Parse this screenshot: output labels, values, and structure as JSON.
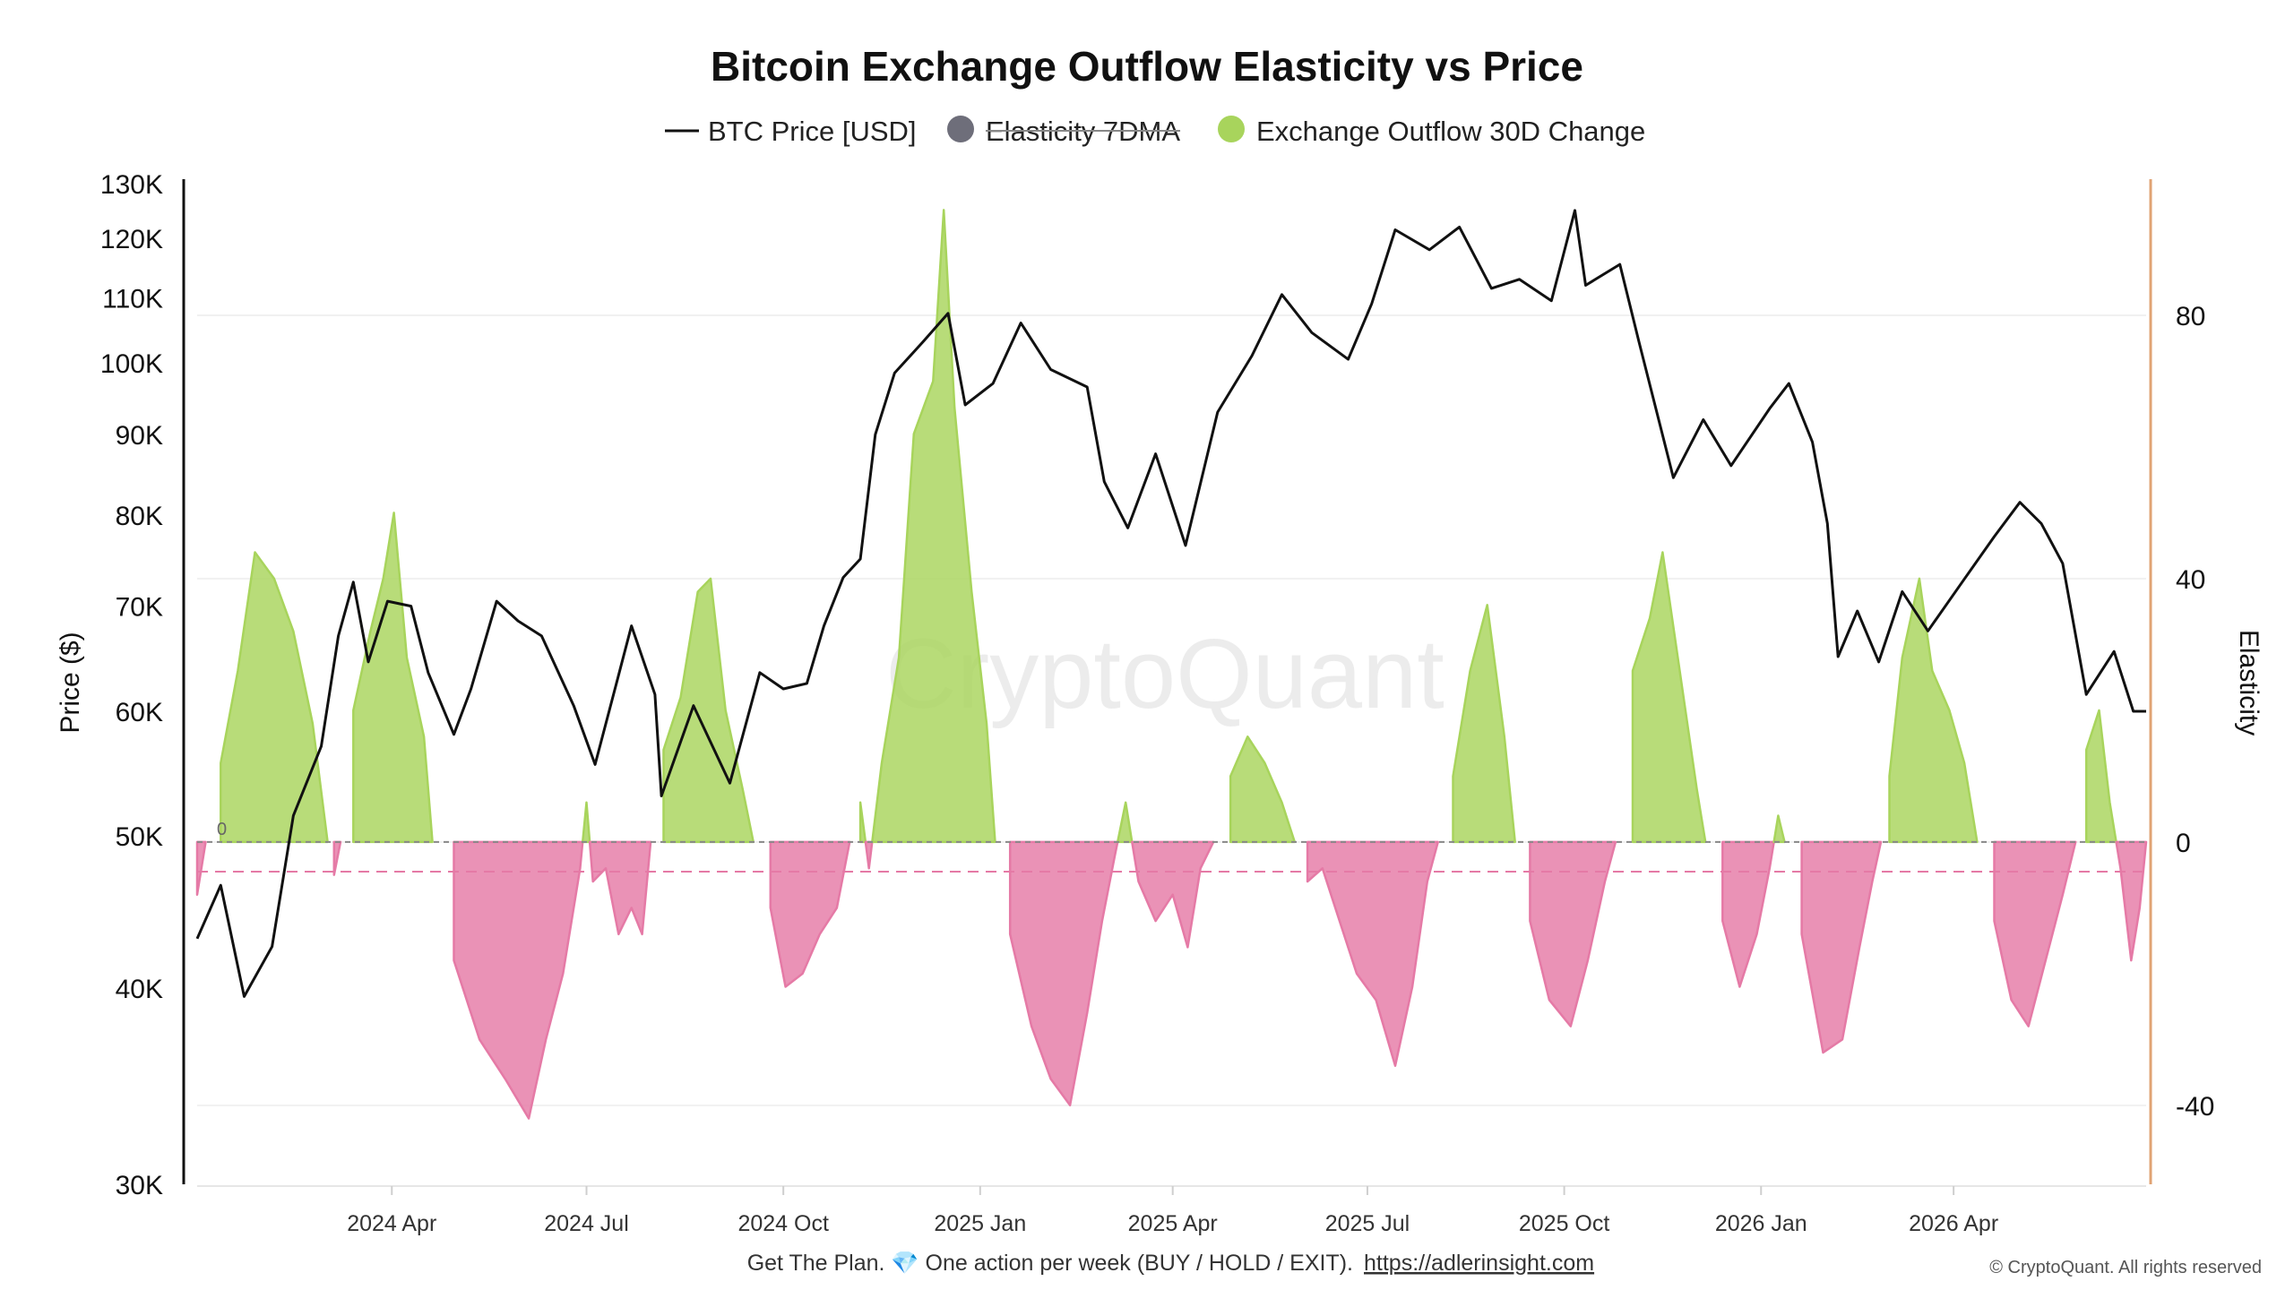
{
  "chart_data": {
    "type": "line",
    "title": "Bitcoin Exchange Outflow Elasticity vs Price",
    "legend": {
      "placement": "top-center",
      "items": [
        {
          "label": "BTC Price [USD]",
          "marker": "line",
          "color": "#111111",
          "disabled": false
        },
        {
          "label": "Elasticity 7DMA",
          "marker": "dot",
          "color": "#6e6e7a",
          "disabled": true
        },
        {
          "label": "Exchange Outflow 30D Change",
          "marker": "dot",
          "color": "#a8d45c",
          "disabled": false
        }
      ]
    },
    "left_axis": {
      "label": "Price ($)",
      "scale": "log",
      "range": [
        30000,
        130000
      ],
      "ticks": [
        {
          "value": 30000,
          "label": "30K"
        },
        {
          "value": 40000,
          "label": "40K"
        },
        {
          "value": 50000,
          "label": "50K"
        },
        {
          "value": 60000,
          "label": "60K"
        },
        {
          "value": 70000,
          "label": "70K"
        },
        {
          "value": 80000,
          "label": "80K"
        },
        {
          "value": 90000,
          "label": "90K"
        },
        {
          "value": 100000,
          "label": "100K"
        },
        {
          "value": 110000,
          "label": "110K"
        },
        {
          "value": 120000,
          "label": "120K"
        },
        {
          "value": 130000,
          "label": "130K"
        }
      ]
    },
    "right_axis": {
      "label": "Elasticity",
      "scale": "linear",
      "range": [
        -52,
        100
      ],
      "ticks": [
        {
          "value": 80,
          "label": "80"
        },
        {
          "value": 40,
          "label": "40"
        },
        {
          "value": 0,
          "label": "0"
        },
        {
          "value": -40,
          "label": "-40"
        }
      ],
      "zero_marker_label": "0",
      "dashed_reference": -4.5
    },
    "x_axis": {
      "range": [
        "2024-01-01",
        "2026-06-30"
      ],
      "ticks": [
        {
          "date": "2024-04-01",
          "label": "2024 Apr"
        },
        {
          "date": "2024-07-01",
          "label": "2024 Jul"
        },
        {
          "date": "2024-10-01",
          "label": "2024 Oct"
        },
        {
          "date": "2025-01-01",
          "label": "2025 Jan"
        },
        {
          "date": "2025-04-01",
          "label": "2025 Apr"
        },
        {
          "date": "2025-07-01",
          "label": "2025 Jul"
        },
        {
          "date": "2025-10-01",
          "label": "2025 Oct"
        },
        {
          "date": "2026-01-01",
          "label": "2026 Jan"
        },
        {
          "date": "2026-04-01",
          "label": "2026 Apr"
        }
      ]
    },
    "series": [
      {
        "name": "BTC Price [USD]",
        "axis": "left",
        "color": "#111111",
        "points": [
          [
            "2024-01-01",
            43000
          ],
          [
            "2024-01-12",
            46500
          ],
          [
            "2024-01-23",
            39500
          ],
          [
            "2024-02-05",
            42500
          ],
          [
            "2024-02-15",
            51500
          ],
          [
            "2024-02-28",
            57000
          ],
          [
            "2024-03-07",
            67000
          ],
          [
            "2024-03-14",
            72500
          ],
          [
            "2024-03-21",
            64500
          ],
          [
            "2024-03-30",
            70500
          ],
          [
            "2024-04-10",
            70000
          ],
          [
            "2024-04-18",
            63500
          ],
          [
            "2024-04-30",
            58000
          ],
          [
            "2024-05-08",
            62000
          ],
          [
            "2024-05-20",
            70500
          ],
          [
            "2024-05-30",
            68500
          ],
          [
            "2024-06-10",
            67000
          ],
          [
            "2024-06-25",
            60500
          ],
          [
            "2024-07-05",
            55500
          ],
          [
            "2024-07-15",
            62500
          ],
          [
            "2024-07-22",
            68000
          ],
          [
            "2024-08-02",
            61500
          ],
          [
            "2024-08-05",
            53000
          ],
          [
            "2024-08-20",
            60500
          ],
          [
            "2024-09-06",
            54000
          ],
          [
            "2024-09-20",
            63500
          ],
          [
            "2024-10-01",
            62000
          ],
          [
            "2024-10-12",
            62500
          ],
          [
            "2024-10-20",
            68000
          ],
          [
            "2024-10-29",
            73000
          ],
          [
            "2024-11-06",
            75000
          ],
          [
            "2024-11-13",
            90000
          ],
          [
            "2024-11-22",
            98500
          ],
          [
            "2024-12-05",
            103000
          ],
          [
            "2024-12-17",
            107500
          ],
          [
            "2024-12-25",
            94000
          ],
          [
            "2025-01-07",
            97000
          ],
          [
            "2025-01-20",
            106000
          ],
          [
            "2025-02-03",
            99000
          ],
          [
            "2025-02-20",
            96500
          ],
          [
            "2025-02-28",
            84000
          ],
          [
            "2025-03-11",
            78500
          ],
          [
            "2025-03-24",
            87500
          ],
          [
            "2025-04-07",
            76500
          ],
          [
            "2025-04-22",
            93000
          ],
          [
            "2025-05-08",
            101000
          ],
          [
            "2025-05-22",
            110500
          ],
          [
            "2025-06-05",
            104500
          ],
          [
            "2025-06-22",
            100500
          ],
          [
            "2025-07-03",
            109000
          ],
          [
            "2025-07-14",
            121500
          ],
          [
            "2025-07-30",
            118000
          ],
          [
            "2025-08-13",
            122000
          ],
          [
            "2025-08-28",
            111500
          ],
          [
            "2025-09-10",
            113000
          ],
          [
            "2025-09-25",
            109500
          ],
          [
            "2025-10-06",
            125000
          ],
          [
            "2025-10-11",
            112000
          ],
          [
            "2025-10-27",
            115500
          ],
          [
            "2025-11-05",
            103000
          ],
          [
            "2025-11-21",
            84500
          ],
          [
            "2025-12-05",
            92000
          ],
          [
            "2025-12-18",
            86000
          ],
          [
            "2026-01-05",
            93500
          ],
          [
            "2026-01-14",
            97000
          ],
          [
            "2026-01-25",
            89000
          ],
          [
            "2026-02-01",
            79000
          ],
          [
            "2026-02-06",
            65000
          ],
          [
            "2026-02-15",
            69500
          ],
          [
            "2026-02-25",
            64500
          ],
          [
            "2026-03-08",
            71500
          ],
          [
            "2026-03-20",
            67500
          ],
          [
            "2026-04-05",
            72500
          ],
          [
            "2026-04-20",
            77500
          ],
          [
            "2026-05-02",
            81500
          ],
          [
            "2026-05-12",
            79000
          ],
          [
            "2026-05-22",
            74500
          ],
          [
            "2026-06-02",
            61500
          ],
          [
            "2026-06-15",
            65500
          ],
          [
            "2026-06-24",
            60000
          ],
          [
            "2026-06-30",
            60000
          ]
        ]
      },
      {
        "name": "Exchange Outflow 30D Change",
        "axis": "right",
        "positive_color": "#a8d45c",
        "negative_color": "#e57aa6",
        "points": [
          [
            "2024-01-01",
            -8
          ],
          [
            "2024-01-05",
            0
          ],
          [
            "2024-01-12",
            12
          ],
          [
            "2024-01-20",
            26
          ],
          [
            "2024-01-28",
            44
          ],
          [
            "2024-02-06",
            40
          ],
          [
            "2024-02-15",
            32
          ],
          [
            "2024-02-24",
            18
          ],
          [
            "2024-03-02",
            0
          ],
          [
            "2024-03-05",
            -5
          ],
          [
            "2024-03-08",
            0
          ],
          [
            "2024-03-14",
            20
          ],
          [
            "2024-03-22",
            32
          ],
          [
            "2024-03-28",
            40
          ],
          [
            "2024-04-02",
            50
          ],
          [
            "2024-04-08",
            28
          ],
          [
            "2024-04-16",
            16
          ],
          [
            "2024-04-20",
            0
          ],
          [
            "2024-04-30",
            -18
          ],
          [
            "2024-05-12",
            -30
          ],
          [
            "2024-05-24",
            -36
          ],
          [
            "2024-06-04",
            -42
          ],
          [
            "2024-06-12",
            -30
          ],
          [
            "2024-06-20",
            -20
          ],
          [
            "2024-06-28",
            -4
          ],
          [
            "2024-07-01",
            6
          ],
          [
            "2024-07-04",
            -6
          ],
          [
            "2024-07-10",
            -4
          ],
          [
            "2024-07-16",
            -14
          ],
          [
            "2024-07-22",
            -10
          ],
          [
            "2024-07-27",
            -14
          ],
          [
            "2024-07-31",
            0
          ],
          [
            "2024-08-06",
            14
          ],
          [
            "2024-08-14",
            22
          ],
          [
            "2024-08-22",
            38
          ],
          [
            "2024-08-28",
            40
          ],
          [
            "2024-09-04",
            20
          ],
          [
            "2024-09-12",
            8
          ],
          [
            "2024-09-17",
            0
          ],
          [
            "2024-09-25",
            -10
          ],
          [
            "2024-10-02",
            -22
          ],
          [
            "2024-10-10",
            -20
          ],
          [
            "2024-10-18",
            -14
          ],
          [
            "2024-10-26",
            -10
          ],
          [
            "2024-11-01",
            0
          ],
          [
            "2024-11-06",
            6
          ],
          [
            "2024-11-10",
            -4
          ],
          [
            "2024-11-16",
            12
          ],
          [
            "2024-11-24",
            28
          ],
          [
            "2024-12-01",
            62
          ],
          [
            "2024-12-10",
            70
          ],
          [
            "2024-12-15",
            96
          ],
          [
            "2024-12-20",
            66
          ],
          [
            "2024-12-28",
            38
          ],
          [
            "2025-01-04",
            18
          ],
          [
            "2025-01-08",
            0
          ],
          [
            "2025-01-15",
            -14
          ],
          [
            "2025-01-25",
            -28
          ],
          [
            "2025-02-03",
            -36
          ],
          [
            "2025-02-12",
            -40
          ],
          [
            "2025-02-20",
            -26
          ],
          [
            "2025-02-27",
            -12
          ],
          [
            "2025-03-05",
            -2
          ],
          [
            "2025-03-10",
            6
          ],
          [
            "2025-03-16",
            -6
          ],
          [
            "2025-03-24",
            -12
          ],
          [
            "2025-04-01",
            -8
          ],
          [
            "2025-04-08",
            -16
          ],
          [
            "2025-04-14",
            -4
          ],
          [
            "2025-04-20",
            0
          ],
          [
            "2025-04-28",
            10
          ],
          [
            "2025-05-06",
            16
          ],
          [
            "2025-05-14",
            12
          ],
          [
            "2025-05-22",
            6
          ],
          [
            "2025-05-28",
            0
          ],
          [
            "2025-06-03",
            -6
          ],
          [
            "2025-06-10",
            -4
          ],
          [
            "2025-06-18",
            -12
          ],
          [
            "2025-06-26",
            -20
          ],
          [
            "2025-07-05",
            -24
          ],
          [
            "2025-07-14",
            -34
          ],
          [
            "2025-07-22",
            -22
          ],
          [
            "2025-07-29",
            -6
          ],
          [
            "2025-08-03",
            0
          ],
          [
            "2025-08-10",
            10
          ],
          [
            "2025-08-18",
            26
          ],
          [
            "2025-08-26",
            36
          ],
          [
            "2025-09-03",
            16
          ],
          [
            "2025-09-08",
            0
          ],
          [
            "2025-09-15",
            -12
          ],
          [
            "2025-09-24",
            -24
          ],
          [
            "2025-10-04",
            -28
          ],
          [
            "2025-10-12",
            -18
          ],
          [
            "2025-10-20",
            -6
          ],
          [
            "2025-10-25",
            0
          ],
          [
            "2025-11-02",
            26
          ],
          [
            "2025-11-10",
            34
          ],
          [
            "2025-11-16",
            44
          ],
          [
            "2025-11-24",
            26
          ],
          [
            "2025-12-02",
            8
          ],
          [
            "2025-12-06",
            0
          ],
          [
            "2025-12-14",
            -12
          ],
          [
            "2025-12-22",
            -22
          ],
          [
            "2025-12-30",
            -14
          ],
          [
            "2026-01-05",
            -4
          ],
          [
            "2026-01-09",
            4
          ],
          [
            "2026-01-12",
            0
          ],
          [
            "2026-01-20",
            -14
          ],
          [
            "2026-01-30",
            -32
          ],
          [
            "2026-02-08",
            -30
          ],
          [
            "2026-02-16",
            -16
          ],
          [
            "2026-02-22",
            -6
          ],
          [
            "2026-02-26",
            0
          ],
          [
            "2026-03-02",
            10
          ],
          [
            "2026-03-08",
            28
          ],
          [
            "2026-03-16",
            40
          ],
          [
            "2026-03-22",
            26
          ],
          [
            "2026-03-30",
            20
          ],
          [
            "2026-04-06",
            12
          ],
          [
            "2026-04-12",
            0
          ],
          [
            "2026-04-20",
            -12
          ],
          [
            "2026-04-28",
            -24
          ],
          [
            "2026-05-06",
            -28
          ],
          [
            "2026-05-14",
            -18
          ],
          [
            "2026-05-22",
            -8
          ],
          [
            "2026-05-28",
            0
          ],
          [
            "2026-06-02",
            14
          ],
          [
            "2026-06-08",
            20
          ],
          [
            "2026-06-13",
            6
          ],
          [
            "2026-06-18",
            -4
          ],
          [
            "2026-06-23",
            -18
          ],
          [
            "2026-06-27",
            -10
          ],
          [
            "2026-06-30",
            0
          ]
        ]
      }
    ],
    "grid": false
  },
  "watermark": "CryptoQuant",
  "footer": {
    "text": "Get The Plan. 💎 One action per week (BUY / HOLD / EXIT).",
    "link": "https://adlerinsight.com"
  },
  "copyright": "© CryptoQuant. All rights reserved",
  "colors": {
    "left_axis_line": "#111111",
    "right_axis_line": "#e0a373",
    "zero_line": "#888888",
    "dashed_reference": "#e57aa6"
  }
}
